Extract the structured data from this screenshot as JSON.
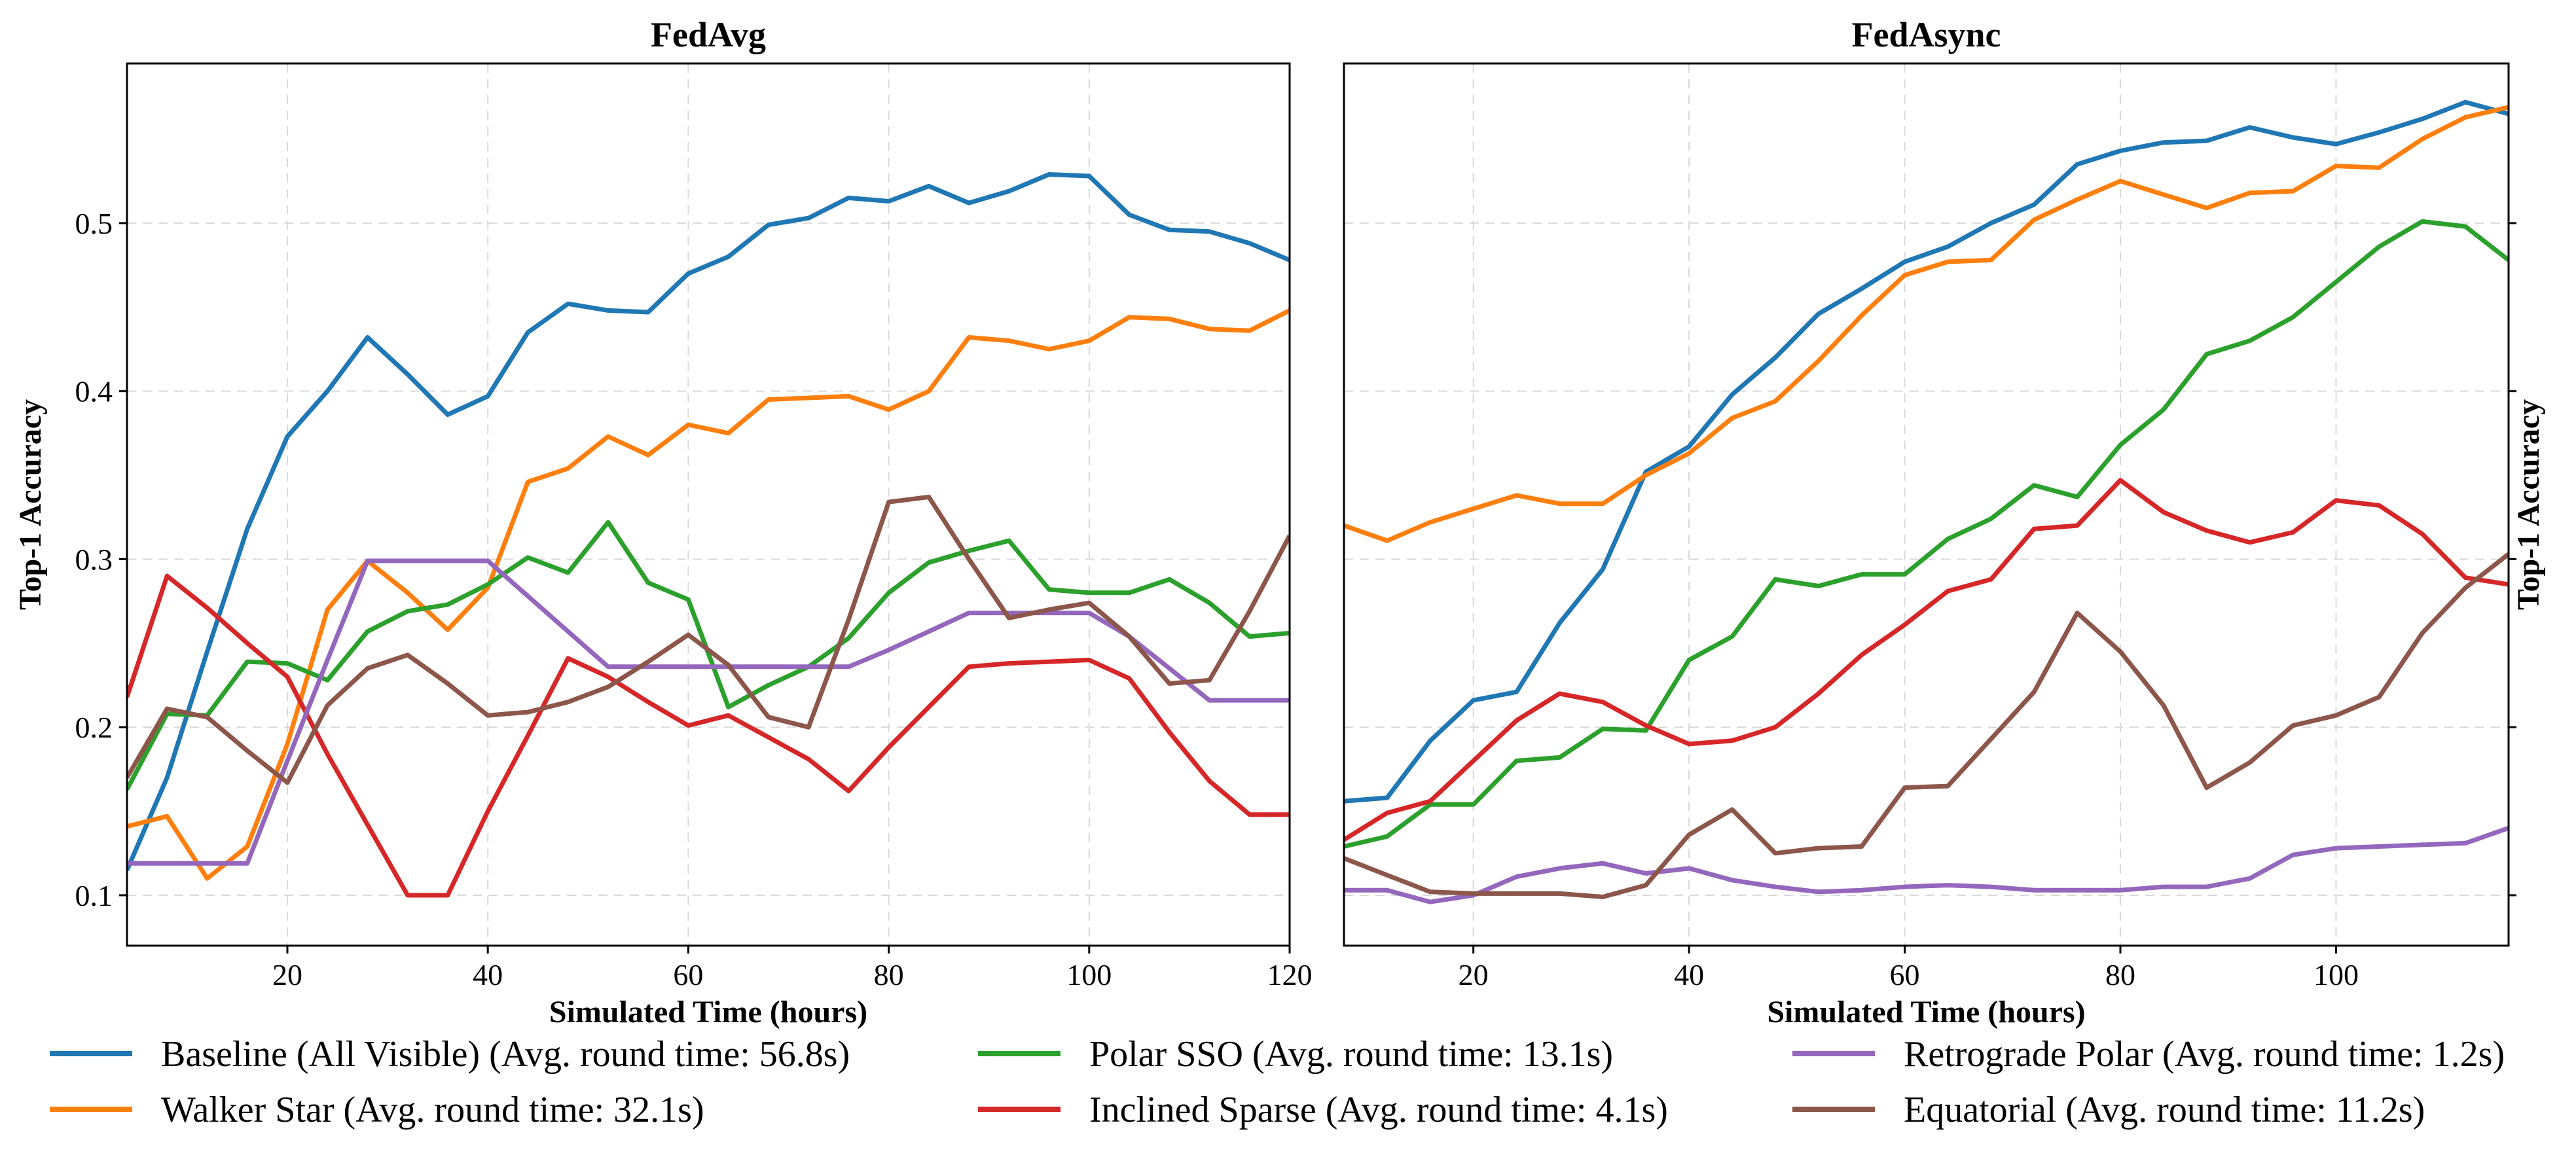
{
  "chart_data": [
    {
      "type": "line",
      "title": "FedAvg",
      "xlabel": "Simulated Time (hours)",
      "ylabel": "Top-1 Accuracy",
      "xlim": [
        4,
        120
      ],
      "ylim": [
        0.07,
        0.595
      ],
      "xticks": [
        20,
        40,
        60,
        80,
        100,
        120
      ],
      "yticks": [
        0.1,
        0.2,
        0.3,
        0.4,
        0.5
      ],
      "ylabel_side": "left",
      "grid": true,
      "x": [
        4,
        8,
        12,
        16,
        20,
        24,
        28,
        32,
        36,
        40,
        44,
        48,
        52,
        56,
        60,
        64,
        68,
        72,
        76,
        80,
        84,
        88,
        92,
        96,
        100,
        104,
        108,
        112,
        116,
        120
      ],
      "series": [
        {
          "name": "Baseline (All Visible) (Avg. round time: 56.8s)",
          "color": "#1f77b4",
          "values": [
            0.115,
            0.17,
            0.245,
            0.318,
            0.373,
            0.4,
            0.432,
            0.41,
            0.386,
            0.397,
            0.435,
            0.452,
            0.448,
            0.447,
            0.47,
            0.48,
            0.499,
            0.503,
            0.515,
            0.513,
            0.522,
            0.512,
            0.519,
            0.529,
            0.528,
            0.505,
            0.496,
            0.495,
            0.488,
            0.478
          ]
        },
        {
          "name": "Walker Star (Avg. round time: 32.1s)",
          "color": "#ff7f0e",
          "values": [
            0.141,
            0.147,
            0.11,
            0.129,
            0.19,
            0.27,
            0.299,
            0.28,
            0.258,
            0.283,
            0.346,
            0.354,
            0.373,
            0.362,
            0.38,
            0.375,
            0.395,
            0.396,
            0.397,
            0.389,
            0.4,
            0.432,
            0.43,
            0.425,
            0.43,
            0.444,
            0.443,
            0.437,
            0.436,
            0.448
          ]
        },
        {
          "name": "Polar SSO (Avg. round time: 13.1s)",
          "color": "#2ca02c",
          "values": [
            0.163,
            0.208,
            0.207,
            0.239,
            0.238,
            0.228,
            0.257,
            0.269,
            0.273,
            0.285,
            0.301,
            0.292,
            0.322,
            0.286,
            0.276,
            0.212,
            0.225,
            0.236,
            0.253,
            0.28,
            0.298,
            0.305,
            0.311,
            0.282,
            0.28,
            0.28,
            0.288,
            0.274,
            0.254,
            0.256
          ]
        },
        {
          "name": "Inclined Sparse (Avg. round time: 4.1s)",
          "color": "#d62728",
          "values": [
            0.218,
            0.29,
            0.271,
            0.25,
            0.23,
            0.184,
            0.142,
            0.1,
            0.1,
            0.15,
            0.195,
            0.241,
            0.23,
            0.215,
            0.201,
            0.207,
            0.194,
            0.181,
            0.162,
            0.188,
            0.212,
            0.236,
            0.238,
            0.239,
            0.24,
            0.229,
            0.197,
            0.168,
            0.148,
            0.148
          ]
        },
        {
          "name": "Retrograde Polar (Avg. round time: 1.2s)",
          "color": "#9467bd",
          "values": [
            0.119,
            0.119,
            0.119,
            0.119,
            0.18,
            0.24,
            0.299,
            0.299,
            0.299,
            0.299,
            0.278,
            0.257,
            0.236,
            0.236,
            0.236,
            0.236,
            0.236,
            0.236,
            0.236,
            0.246,
            0.257,
            0.268,
            0.268,
            0.268,
            0.268,
            0.254,
            0.235,
            0.216,
            0.216,
            0.216
          ]
        },
        {
          "name": "Equatorial (Avg. round time: 11.2s)",
          "color": "#8c564b",
          "values": [
            0.17,
            0.211,
            0.206,
            0.186,
            0.167,
            0.213,
            0.235,
            0.243,
            0.226,
            0.207,
            0.209,
            0.215,
            0.224,
            0.239,
            0.255,
            0.237,
            0.206,
            0.2,
            0.264,
            0.334,
            0.337,
            0.3,
            0.265,
            0.27,
            0.274,
            0.254,
            0.226,
            0.228,
            0.269,
            0.314
          ]
        }
      ]
    },
    {
      "type": "line",
      "title": "FedAsync",
      "xlabel": "Simulated Time (hours)",
      "ylabel": "Top-1 Accuracy",
      "xlim": [
        8,
        116
      ],
      "ylim": [
        0.07,
        0.595
      ],
      "xticks": [
        20,
        40,
        60,
        80,
        100
      ],
      "yticks": [
        0.1,
        0.2,
        0.3,
        0.4,
        0.5
      ],
      "ylabel_side": "right",
      "grid": true,
      "x": [
        8,
        12,
        16,
        20,
        24,
        28,
        32,
        36,
        40,
        44,
        48,
        52,
        56,
        60,
        64,
        68,
        72,
        76,
        80,
        84,
        88,
        92,
        96,
        100,
        104,
        108,
        112,
        116
      ],
      "series": [
        {
          "name": "Baseline (All Visible) (Avg. round time: 56.8s)",
          "color": "#1f77b4",
          "values": [
            0.156,
            0.158,
            0.192,
            0.216,
            0.221,
            0.262,
            0.294,
            0.352,
            0.367,
            0.398,
            0.42,
            0.446,
            0.461,
            0.477,
            0.486,
            0.5,
            0.511,
            0.535,
            0.543,
            0.548,
            0.549,
            0.557,
            0.551,
            0.547,
            0.554,
            0.562,
            0.572,
            0.565
          ]
        },
        {
          "name": "Walker Star (Avg. round time: 32.1s)",
          "color": "#ff7f0e",
          "values": [
            0.32,
            0.311,
            0.322,
            0.33,
            0.338,
            0.333,
            0.333,
            0.35,
            0.363,
            0.384,
            0.394,
            0.418,
            0.445,
            0.469,
            0.477,
            0.478,
            0.502,
            0.514,
            0.525,
            0.517,
            0.509,
            0.518,
            0.519,
            0.534,
            0.533,
            0.55,
            0.563,
            0.569
          ]
        },
        {
          "name": "Polar SSO (Avg. round time: 13.1s)",
          "color": "#2ca02c",
          "values": [
            0.129,
            0.135,
            0.154,
            0.154,
            0.18,
            0.182,
            0.199,
            0.198,
            0.24,
            0.254,
            0.288,
            0.284,
            0.291,
            0.291,
            0.312,
            0.324,
            0.344,
            0.337,
            0.368,
            0.389,
            0.422,
            0.43,
            0.444,
            0.465,
            0.486,
            0.501,
            0.498,
            0.478
          ]
        },
        {
          "name": "Inclined Sparse (Avg. round time: 4.1s)",
          "color": "#d62728",
          "values": [
            0.133,
            0.149,
            0.156,
            0.18,
            0.204,
            0.22,
            0.215,
            0.201,
            0.19,
            0.192,
            0.2,
            0.22,
            0.243,
            0.261,
            0.281,
            0.288,
            0.318,
            0.32,
            0.347,
            0.328,
            0.317,
            0.31,
            0.316,
            0.335,
            0.332,
            0.315,
            0.289,
            0.285
          ]
        },
        {
          "name": "Retrograde Polar (Avg. round time: 1.2s)",
          "color": "#9467bd",
          "values": [
            0.103,
            0.103,
            0.096,
            0.1,
            0.111,
            0.116,
            0.119,
            0.113,
            0.116,
            0.109,
            0.105,
            0.102,
            0.103,
            0.105,
            0.106,
            0.105,
            0.103,
            0.103,
            0.103,
            0.105,
            0.105,
            0.11,
            0.124,
            0.128,
            0.129,
            0.13,
            0.131,
            0.14
          ]
        },
        {
          "name": "Equatorial (Avg. round time: 11.2s)",
          "color": "#8c564b",
          "values": [
            0.122,
            0.112,
            0.102,
            0.101,
            0.101,
            0.101,
            0.099,
            0.106,
            0.136,
            0.151,
            0.125,
            0.128,
            0.129,
            0.164,
            0.165,
            0.193,
            0.221,
            0.268,
            0.245,
            0.213,
            0.164,
            0.179,
            0.201,
            0.207,
            0.218,
            0.256,
            0.283,
            0.303
          ]
        }
      ]
    }
  ],
  "legend": [
    {
      "label": "Baseline (All Visible) (Avg. round time: 56.8s)",
      "color": "#1f77b4"
    },
    {
      "label": "Polar SSO (Avg. round time: 13.1s)",
      "color": "#2ca02c"
    },
    {
      "label": "Retrograde Polar (Avg. round time: 1.2s)",
      "color": "#9467bd"
    },
    {
      "label": "Walker Star (Avg. round time: 32.1s)",
      "color": "#ff7f0e"
    },
    {
      "label": "Inclined Sparse (Avg. round time: 4.1s)",
      "color": "#d62728"
    },
    {
      "label": "Equatorial (Avg. round time: 11.2s)",
      "color": "#8c564b"
    }
  ]
}
